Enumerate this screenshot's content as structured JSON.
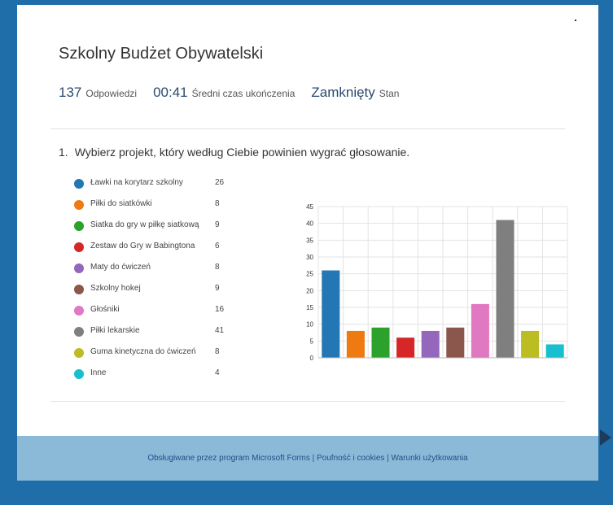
{
  "form": {
    "title": "Szkolny Budżet Obywatelski",
    "responses_count": "137",
    "responses_label": "Odpowiedzi",
    "avg_time": "00:41",
    "avg_time_label": "Średni czas ukończenia",
    "status": "Zamknięty",
    "status_label": "Stan"
  },
  "question": {
    "number": "1.",
    "text": "Wybierz projekt, który według Ciebie powinien wygrać głosowanie."
  },
  "footer": {
    "powered": "Obsługiwane przez program Microsoft Forms",
    "sep": " | ",
    "privacy": "Poufność i cookies",
    "terms": "Warunki użytkowania"
  },
  "chart_data": {
    "type": "bar",
    "categories": [
      "Ławki na korytarz szkolny",
      "Piłki do siatkówki",
      "Siatka do gry w piłkę siatkową",
      "Zestaw do Gry w Babingtona",
      "Maty do ćwiczeń",
      "Szkolny hokej",
      "Głośniki",
      "Piłki lekarskie",
      "Guma kinetyczna do ćwiczeń",
      "Inne"
    ],
    "values": [
      26,
      8,
      9,
      6,
      8,
      9,
      16,
      41,
      8,
      4
    ],
    "colors": [
      "#2277b4",
      "#ee7a11",
      "#2ca12c",
      "#d52728",
      "#9467bd",
      "#8b564b",
      "#e178c2",
      "#7f7f7f",
      "#bcbd22",
      "#18bfcf"
    ],
    "ylim": [
      0,
      45
    ],
    "yticks": [
      "0",
      "5",
      "10",
      "15",
      "20",
      "25",
      "30",
      "35",
      "40",
      "45"
    ],
    "grid": true,
    "legend_position": "left"
  }
}
